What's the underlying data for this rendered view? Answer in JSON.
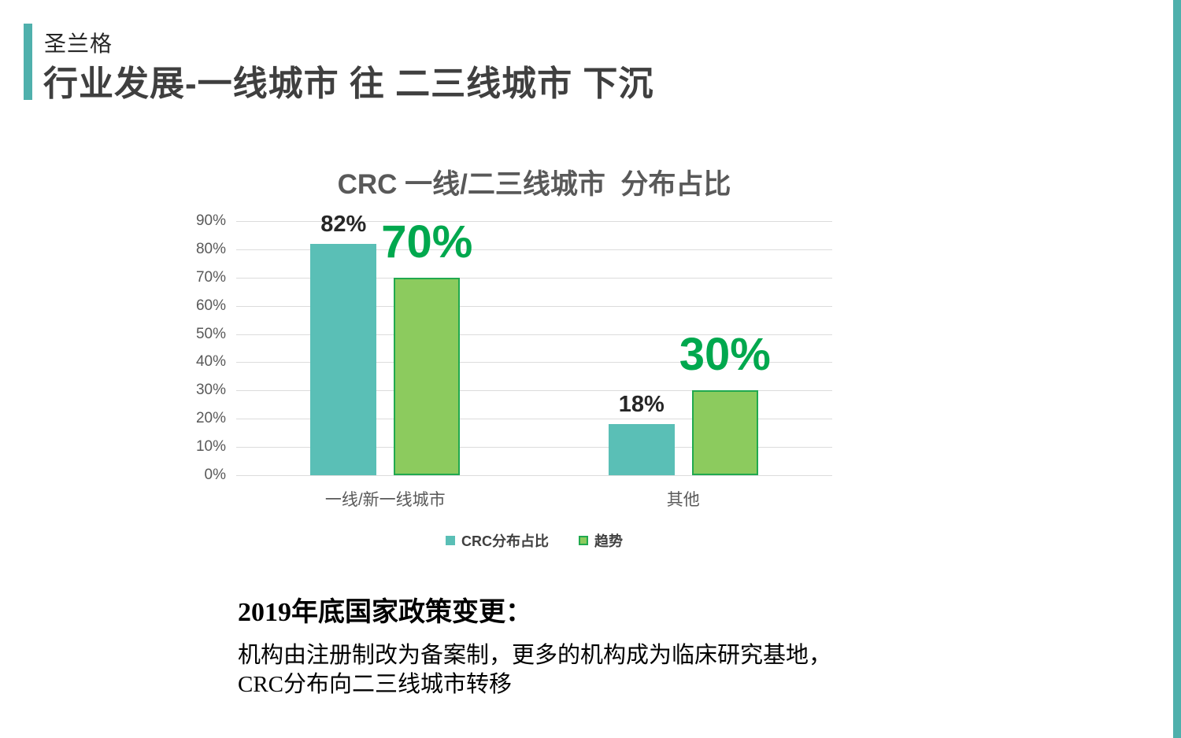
{
  "header": {
    "brand": "圣兰格",
    "title": "行业发展-一线城市 往 二三线城市 下沉"
  },
  "chart_data": {
    "type": "bar",
    "title": "CRC 一线/二三线城市  分布占比",
    "categories": [
      "一线/新一线城市",
      "其他"
    ],
    "series": [
      {
        "name": "CRC分布占比",
        "values": [
          82,
          18
        ],
        "labels": [
          "82%",
          "18%"
        ],
        "color": "#5ABFB6",
        "border_color": null,
        "label_style": "small-dark"
      },
      {
        "name": "趋势",
        "values": [
          70,
          30
        ],
        "labels": [
          "70%",
          "30%"
        ],
        "color": "#8CCB5E",
        "border_color": "#21A94F",
        "label_style": "big-green"
      }
    ],
    "ylim": [
      0,
      90
    ],
    "ytick_step": 10,
    "ytick_labels": [
      "0%",
      "10%",
      "20%",
      "30%",
      "40%",
      "50%",
      "60%",
      "70%",
      "80%",
      "90%"
    ],
    "grid": true,
    "legend_position": "bottom"
  },
  "note": {
    "heading": "2019年底国家政策变更：",
    "lines": [
      "机构由注册制改为备案制，更多的机构成为临床研究基地，",
      "CRC分布向二三线城市转移"
    ]
  },
  "colors": {
    "accent": "#4FB0AC",
    "teal_series": "#5ABFB6",
    "green_fill": "#8CCB5E",
    "green_border": "#21A94F",
    "green_value_label": "#00A84E",
    "dark_value_label": "#262626",
    "axis_text": "#595959",
    "gridline": "#DCDCDC"
  }
}
